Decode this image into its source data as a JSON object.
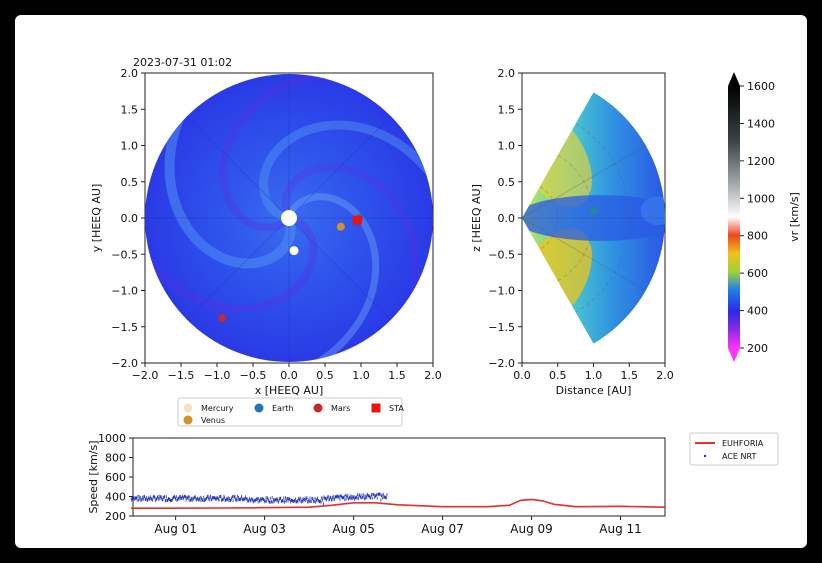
{
  "timestamp": "2023-07-31 01:02",
  "colors": {
    "sun": "#ffffff",
    "mercury": "#f3e3c3",
    "venus": "#d4902e",
    "earth": "#1f77b4",
    "mars": "#c62828",
    "sta": "#ee1111",
    "euhforia_line": "#e03030",
    "ace_points": "#2233bb"
  },
  "chart_data": [
    {
      "type": "heatmap",
      "name": "equatorial-plane",
      "xlabel": "x [HEEQ AU]",
      "ylabel": "y [HEEQ AU]",
      "xlim": [
        -2.0,
        2.0
      ],
      "ylim": [
        -2.0,
        2.0
      ],
      "xticks": [
        "−2.0",
        "−1.5",
        "−1.0",
        "−0.5",
        "0.0",
        "0.5",
        "1.0",
        "1.5",
        "2.0"
      ],
      "yticks": [
        "−2.0",
        "−1.5",
        "−1.0",
        "−0.5",
        "0.0",
        "0.5",
        "1.0",
        "1.5",
        "2.0"
      ],
      "bodies": [
        {
          "name": "Sun",
          "x": 0.0,
          "y": 0.0
        },
        {
          "name": "Mercury",
          "x": 0.07,
          "y": -0.45
        },
        {
          "name": "Venus",
          "x": 0.72,
          "y": -0.12
        },
        {
          "name": "Earth",
          "x": 0.98,
          "y": 0.0
        },
        {
          "name": "Mars",
          "x": -0.93,
          "y": -1.38
        },
        {
          "name": "STA",
          "x": 0.95,
          "y": -0.03
        }
      ]
    },
    {
      "type": "heatmap",
      "name": "meridional-plane",
      "xlabel": "Distance [AU]",
      "ylabel": "z [HEEQ AU]",
      "xlim": [
        0.0,
        2.0
      ],
      "ylim": [
        -2.0,
        2.0
      ],
      "xticks": [
        "0.0",
        "0.5",
        "1.0",
        "1.5",
        "2.0"
      ],
      "yticks": [
        "−2.0",
        "−1.5",
        "−1.0",
        "−0.5",
        "0.0",
        "0.5",
        "1.0",
        "1.5",
        "2.0"
      ],
      "bodies": [
        {
          "name": "Earth",
          "x": 1.0,
          "y": 0.1
        }
      ]
    },
    {
      "type": "colorbar",
      "label": "vr  [km/s]",
      "range": [
        200,
        1600
      ],
      "ticks": [
        "200",
        "400",
        "600",
        "800",
        "1000",
        "1200",
        "1400",
        "1600"
      ]
    },
    {
      "type": "line",
      "name": "speed-timeseries",
      "ylabel": "Speed [km/s]",
      "ylim": [
        200,
        1000
      ],
      "yticks": [
        "200",
        "400",
        "600",
        "800",
        "1000"
      ],
      "xlim": [
        "2023-07-31 01:00",
        "2023-08-12 00:00"
      ],
      "xticks": [
        "Aug 01",
        "Aug 03",
        "Aug 05",
        "Aug 07",
        "Aug 09",
        "Aug 11"
      ],
      "series": [
        {
          "name": "EUHFORIA",
          "x": [
            "2023-07-31",
            "2023-08-01",
            "2023-08-02",
            "2023-08-03",
            "2023-08-04",
            "2023-08-04 12:00",
            "2023-08-05",
            "2023-08-05 12:00",
            "2023-08-06",
            "2023-08-07",
            "2023-08-08",
            "2023-08-08 12:00",
            "2023-08-08 18:00",
            "2023-08-09",
            "2023-08-09 06:00",
            "2023-08-09 12:00",
            "2023-08-10",
            "2023-08-11",
            "2023-08-12"
          ],
          "y": [
            280,
            280,
            282,
            285,
            290,
            310,
            335,
            335,
            315,
            295,
            295,
            310,
            360,
            370,
            355,
            320,
            295,
            300,
            290
          ]
        },
        {
          "name": "ACE NRT",
          "x_range": [
            "2023-07-31",
            "2023-08-05 18:00"
          ],
          "approx_mean": 380,
          "approx_spread": 40
        }
      ]
    }
  ],
  "legend_planets": [
    {
      "label": "Mercury",
      "color_key": "mercury",
      "shape": "circle"
    },
    {
      "label": "Earth",
      "color_key": "earth",
      "shape": "circle"
    },
    {
      "label": "Mars",
      "color_key": "mars",
      "shape": "circle"
    },
    {
      "label": "STA",
      "color_key": "sta",
      "shape": "square"
    },
    {
      "label": "Venus",
      "color_key": "venus",
      "shape": "circle"
    }
  ],
  "legend_series": [
    {
      "label": "EUHFORIA",
      "color_key": "euhforia_line"
    },
    {
      "label": "ACE NRT",
      "color_key": "ace_points"
    }
  ]
}
